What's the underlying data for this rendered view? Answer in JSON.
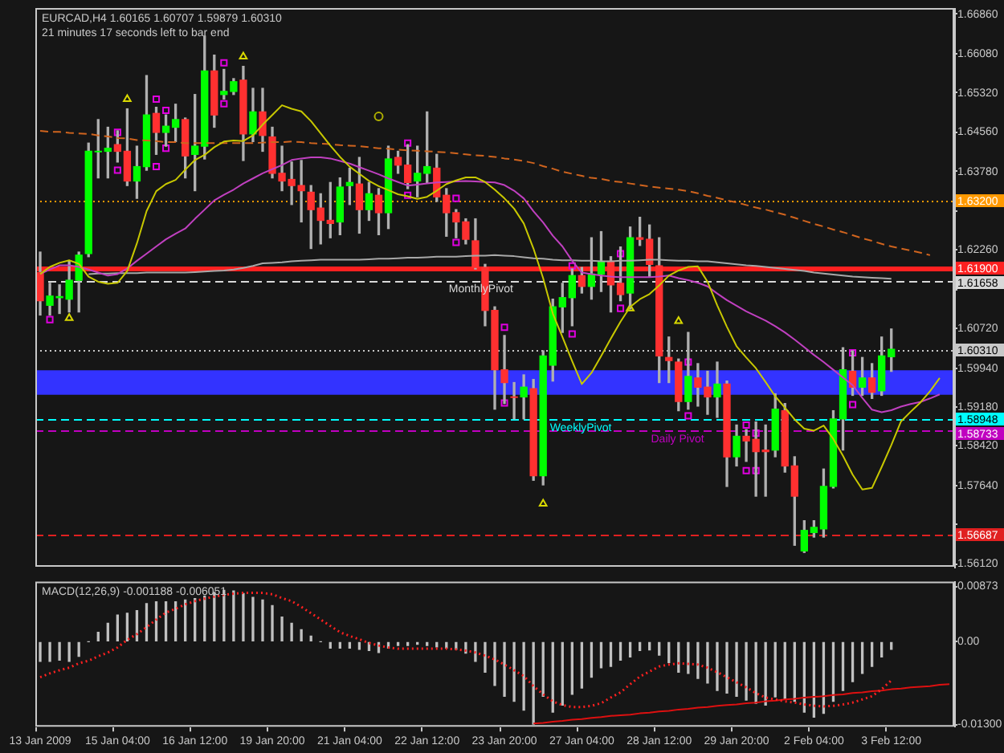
{
  "chart_data": [
    {
      "type": "candlestick",
      "title": "EURCAD,H4 1.60165 1.60707 1.59879 1.60310",
      "subtitle": "21 minutes 17 seconds left to bar end",
      "categories": [
        null,
        null,
        null,
        null,
        null,
        null,
        null,
        null,
        null,
        null,
        null,
        null,
        null,
        null,
        null,
        null,
        null,
        null,
        null,
        null,
        null,
        null,
        null,
        null,
        null,
        null,
        null,
        null,
        null,
        null,
        null,
        null,
        null,
        null,
        null,
        null,
        null,
        null,
        null,
        null,
        null,
        null,
        null,
        null,
        null,
        null,
        null,
        null,
        null,
        null,
        null,
        null,
        null,
        null,
        null,
        null,
        null,
        null,
        null,
        null,
        null,
        null,
        null,
        null,
        null,
        null,
        null,
        null,
        null,
        null,
        null,
        null,
        null,
        null,
        null,
        null,
        null,
        null,
        null,
        null,
        null,
        null,
        null,
        null,
        null,
        null,
        null,
        null,
        null,
        null,
        null,
        null,
        null,
        null,
        null
      ],
      "ohlc": [
        [
          1.6181,
          1.6221,
          1.6098,
          1.6126
        ],
        [
          1.6117,
          1.616,
          1.6098,
          1.6135
        ],
        [
          1.6132,
          1.6157,
          1.6101,
          1.6134
        ],
        [
          1.6129,
          1.6203,
          1.6104,
          1.6166
        ],
        [
          1.6166,
          1.6221,
          1.6104,
          1.6215
        ],
        [
          1.6218,
          1.6434,
          1.6212,
          1.6418
        ],
        [
          1.6417,
          1.648,
          1.6366,
          1.6418
        ],
        [
          1.6418,
          1.6465,
          1.6366,
          1.6424
        ],
        [
          1.6431,
          1.6458,
          1.6397,
          1.6418
        ],
        [
          1.6418,
          1.6501,
          1.6351,
          1.636
        ],
        [
          1.636,
          1.6428,
          1.6326,
          1.6388
        ],
        [
          1.6388,
          1.6566,
          1.6381,
          1.6489
        ],
        [
          1.6492,
          1.6504,
          1.6412,
          1.6455
        ],
        [
          1.6455,
          1.6489,
          1.6428,
          1.6467
        ],
        [
          1.6465,
          1.651,
          1.6437,
          1.648
        ],
        [
          1.648,
          1.6483,
          1.6366,
          1.6409
        ],
        [
          1.6412,
          1.6529,
          1.6341,
          1.6428
        ],
        [
          1.6428,
          1.6643,
          1.6403,
          1.6575
        ],
        [
          1.6575,
          1.6606,
          1.6465,
          1.6489
        ],
        [
          1.6529,
          1.6578,
          1.652,
          1.6535
        ],
        [
          1.6535,
          1.656,
          1.6529,
          1.6554
        ],
        [
          1.6557,
          1.6584,
          1.64,
          1.6452
        ],
        [
          1.6452,
          1.6541,
          1.6437,
          1.6495
        ],
        [
          1.6495,
          1.6541,
          1.6418,
          1.6449
        ],
        [
          1.6446,
          1.6465,
          1.6366,
          1.6375
        ],
        [
          1.6375,
          1.6428,
          1.6341,
          1.636
        ],
        [
          1.6363,
          1.6397,
          1.6314,
          1.6351
        ],
        [
          1.6351,
          1.64,
          1.628,
          1.6341
        ],
        [
          1.6338,
          1.6351,
          1.6228,
          1.6304
        ],
        [
          1.6307,
          1.6335,
          1.6237,
          1.6283
        ],
        [
          1.6283,
          1.6357,
          1.6249,
          1.6277
        ],
        [
          1.628,
          1.6366,
          1.6255,
          1.6348
        ],
        [
          1.6351,
          1.6385,
          1.6314,
          1.6357
        ],
        [
          1.6354,
          1.6406,
          1.6258,
          1.6304
        ],
        [
          1.6304,
          1.6357,
          1.6283,
          1.6335
        ],
        [
          1.6332,
          1.6345,
          1.6255,
          1.6298
        ],
        [
          1.6298,
          1.6428,
          1.6267,
          1.6403
        ],
        [
          1.6406,
          1.6418,
          1.6375,
          1.6391
        ],
        [
          1.6391,
          1.6431,
          1.6345,
          1.6357
        ],
        [
          1.636,
          1.6428,
          1.6329,
          1.6375
        ],
        [
          1.6375,
          1.6495,
          1.6357,
          1.6388
        ],
        [
          1.6385,
          1.6412,
          1.632,
          1.6329
        ],
        [
          1.6332,
          1.6345,
          1.6252,
          1.6298
        ],
        [
          1.6298,
          1.6304,
          1.6249,
          1.628
        ],
        [
          1.628,
          1.6286,
          1.6237,
          1.6246
        ],
        [
          1.6243,
          1.6286,
          1.6188,
          1.6191
        ],
        [
          1.6191,
          1.6197,
          1.6077,
          1.6107
        ],
        [
          1.6107,
          1.6114,
          1.5914,
          1.5991
        ],
        [
          1.5991,
          1.6058,
          1.5925,
          1.5966
        ],
        [
          1.5938,
          1.5966,
          1.5895,
          1.5937
        ],
        [
          1.5938,
          1.5981,
          1.5895,
          1.5957
        ],
        [
          1.5954,
          1.5972,
          1.5775,
          1.5784
        ],
        [
          1.5784,
          1.6028,
          1.5766,
          1.6018
        ],
        [
          1.6,
          1.6129,
          1.5969,
          1.6114
        ],
        [
          1.6114,
          1.616,
          1.6064,
          1.6132
        ],
        [
          1.6132,
          1.6188,
          1.6077,
          1.6175
        ],
        [
          1.6175,
          1.6191,
          1.6141,
          1.6154
        ],
        [
          1.6154,
          1.6249,
          1.6129,
          1.6178
        ],
        [
          1.6178,
          1.6261,
          1.6144,
          1.6203
        ],
        [
          1.6203,
          1.6212,
          1.6104,
          1.6157
        ],
        [
          1.616,
          1.6231,
          1.6126,
          1.6138
        ],
        [
          1.6141,
          1.627,
          1.611,
          1.6249
        ],
        [
          1.6249,
          1.6289,
          1.6234,
          1.6246
        ],
        [
          1.6246,
          1.6274,
          1.6172,
          1.6197
        ],
        [
          1.6194,
          1.6249,
          1.5966,
          1.6018
        ],
        [
          1.6015,
          1.6055,
          1.5966,
          1.6009
        ],
        [
          1.6006,
          1.6012,
          1.5911,
          1.5929
        ],
        [
          1.5929,
          1.6064,
          1.5914,
          1.5978
        ],
        [
          1.5975,
          1.6003,
          1.592,
          1.5957
        ],
        [
          1.5957,
          1.5988,
          1.5904,
          1.5938
        ],
        [
          1.5938,
          1.6006,
          1.5898,
          1.5963
        ],
        [
          1.5963,
          1.5969,
          1.5763,
          1.5821
        ],
        [
          1.5821,
          1.5883,
          1.5803,
          1.5861
        ],
        [
          1.5861,
          1.5874,
          1.5812,
          1.5852
        ],
        [
          1.5855,
          1.5889,
          1.5744,
          1.5831
        ],
        [
          1.5834,
          1.5883,
          1.5744,
          1.5831
        ],
        [
          1.5834,
          1.5944,
          1.5821,
          1.5914
        ],
        [
          1.5911,
          1.5925,
          1.5791,
          1.5803
        ],
        [
          1.5803,
          1.5821,
          1.5648,
          1.5744
        ],
        [
          1.5637,
          1.5696,
          1.5634,
          1.5677
        ],
        [
          1.5673,
          1.5696,
          1.5664,
          1.5683
        ],
        [
          1.568,
          1.5797,
          1.5664,
          1.5763
        ],
        [
          1.5763,
          1.5911,
          1.576,
          1.5895
        ],
        [
          1.5895,
          1.6034,
          1.5834,
          1.5991
        ],
        [
          1.5988,
          1.6028,
          1.5941,
          1.5957
        ],
        [
          1.5957,
          1.6015,
          1.5941,
          1.5975
        ],
        [
          1.5975,
          1.6003,
          1.5935,
          1.5947
        ],
        [
          1.595,
          1.6055,
          1.5941,
          1.6018
        ],
        [
          1.60165,
          1.60707,
          1.59879,
          1.6031
        ],
        null,
        null,
        null,
        null,
        null,
        null
      ],
      "colors": [
        "#ff3030",
        "#00ff00",
        "#00ff00",
        "#00ff00",
        "#00ff00",
        "#00ff00",
        "#00ff00",
        "#00ff00",
        "#ff3030",
        "#ff3030",
        "#00ff00",
        "#00ff00",
        "#ff3030",
        "#00ff00",
        "#00ff00",
        "#ff3030",
        "#00ff00",
        "#00ff00",
        "#ff3030",
        "#00ff00",
        "#00ff00",
        "#ff3030",
        "#00ff00",
        "#ff3030",
        "#ff3030",
        "#ff3030",
        "#ff3030",
        "#ff3030",
        "#ff3030",
        "#ff3030",
        "#ff3030",
        "#00ff00",
        "#00ff00",
        "#ff3030",
        "#00ff00",
        "#ff3030",
        "#00ff00",
        "#ff3030",
        "#ff3030",
        "#00ff00",
        "#00ff00",
        "#ff3030",
        "#ff3030",
        "#ff3030",
        "#ff3030",
        "#ff3030",
        "#ff3030",
        "#ff3030",
        "#ff3030",
        "#ff3030",
        "#00ff00",
        "#ff3030",
        "#00ff00",
        "#00ff00",
        "#00ff00",
        "#00ff00",
        "#ff3030",
        "#00ff00",
        "#00ff00",
        "#ff3030",
        "#ff3030",
        "#00ff00",
        "#ff3030",
        "#ff3030",
        "#ff3030",
        "#ff3030",
        "#ff3030",
        "#00ff00",
        "#ff3030",
        "#ff3030",
        "#00ff00",
        "#ff3030",
        "#00ff00",
        "#ff3030",
        "#ff3030",
        "#ff3030",
        "#00ff00",
        "#ff3030",
        "#ff3030",
        "#00ff00",
        "#00ff00",
        "#00ff00",
        "#00ff00",
        "#00ff00",
        "#ff3030",
        "#00ff00",
        "#ff3030",
        "#00ff00",
        "#00ff00",
        null,
        null,
        null,
        null,
        null,
        null
      ],
      "series": [
        {
          "type": "line",
          "color": "#c8c800",
          "values": [
            1.6178,
            1.6192,
            1.62,
            1.6205,
            1.6198,
            1.6173,
            1.6163,
            1.6159,
            1.6161,
            1.6184,
            1.6238,
            1.6301,
            1.634,
            1.6354,
            1.6362,
            1.6382,
            1.6401,
            1.6411,
            1.6426,
            1.6437,
            1.6439,
            1.6438,
            1.6449,
            1.647,
            1.6489,
            1.6508,
            1.6501,
            1.6496,
            1.6477,
            1.6453,
            1.6429,
            1.6407,
            1.6388,
            1.6374,
            1.636,
            1.635,
            1.6342,
            1.6334,
            1.633,
            1.6325,
            1.6329,
            1.6341,
            1.6354,
            1.6361,
            1.6367,
            1.6367,
            1.6358,
            1.6343,
            1.6326,
            1.6306,
            1.6277,
            1.6228,
            1.617,
            1.6101,
            1.6055,
            1.6008,
            1.5963,
            1.5985,
            1.6018,
            1.6052,
            1.6085,
            1.6114,
            1.6129,
            1.6139,
            1.6156,
            1.6175,
            1.6185,
            1.6192,
            1.6193,
            1.6163,
            1.6117,
            1.6075,
            1.6037,
            1.6015,
            1.5994,
            1.5967,
            1.5939,
            1.5917,
            1.5894,
            1.5876,
            1.5872,
            1.5882,
            1.5856,
            1.5823,
            1.5786,
            1.5757,
            1.576,
            1.5801,
            1.5844,
            1.589,
            1.5909,
            1.5927,
            1.5949,
            1.5975,
            null
          ]
        },
        {
          "type": "line",
          "color": "#c040c0",
          "values": [
            1.6178,
            1.6187,
            1.6195,
            1.6195,
            1.6192,
            1.6187,
            1.6181,
            1.6175,
            1.6178,
            1.6189,
            1.6204,
            1.6218,
            1.6232,
            1.6246,
            1.6257,
            1.6267,
            1.6286,
            1.6304,
            1.6322,
            1.6333,
            1.6343,
            1.6355,
            1.6365,
            1.6375,
            1.6383,
            1.6391,
            1.6401,
            1.6404,
            1.6406,
            1.6406,
            1.6404,
            1.6399,
            1.6394,
            1.6387,
            1.638,
            1.6373,
            1.6365,
            1.6358,
            1.6351,
            1.6353,
            1.6355,
            1.6357,
            1.6358,
            1.6359,
            1.636,
            1.6359,
            1.6358,
            1.6357,
            1.6352,
            1.6341,
            1.6326,
            1.6301,
            1.6279,
            1.6253,
            1.6232,
            1.6204,
            1.6181,
            1.6178,
            1.6175,
            1.6173,
            1.6172,
            1.6172,
            1.6172,
            1.6172,
            1.6173,
            1.6175,
            1.617,
            1.6166,
            1.6161,
            1.6154,
            1.614,
            1.6127,
            1.6116,
            1.6105,
            1.6096,
            1.6087,
            1.6076,
            1.6064,
            1.605,
            1.6035,
            1.602,
            1.6006,
            1.5991,
            1.5976,
            1.5961,
            1.5936,
            1.5913,
            1.5908,
            1.5912,
            1.5919,
            1.5924,
            1.5928,
            1.5935,
            1.5943,
            null
          ]
        },
        {
          "type": "line",
          "color": "#d0641e",
          "line_style": "dashed",
          "values": [
            1.6458,
            1.6456,
            1.6456,
            1.6454,
            1.6453,
            1.6452,
            1.6449,
            1.6447,
            1.6444,
            1.6443,
            1.644,
            1.6439,
            1.6438,
            1.6436,
            1.6436,
            1.6434,
            1.6434,
            1.6434,
            1.6434,
            1.6434,
            1.6434,
            1.6434,
            1.6434,
            1.6435,
            1.6436,
            1.6436,
            1.6437,
            1.6436,
            1.6434,
            1.6433,
            1.6432,
            1.643,
            1.6429,
            1.6428,
            1.6426,
            1.6424,
            1.6423,
            1.6421,
            1.642,
            1.6419,
            1.6418,
            1.6417,
            1.6416,
            1.6414,
            1.6412,
            1.641,
            1.6409,
            1.6407,
            1.6404,
            1.6402,
            1.6399,
            1.6395,
            1.6389,
            1.6384,
            1.6378,
            1.6374,
            1.637,
            1.6366,
            1.6364,
            1.636,
            1.6358,
            1.6355,
            1.6352,
            1.6349,
            1.6347,
            1.6345,
            1.6343,
            1.634,
            1.6336,
            1.6331,
            1.6327,
            1.6322,
            1.6318,
            1.6313,
            1.6308,
            1.6304,
            1.6299,
            1.6294,
            1.6288,
            1.6282,
            1.6276,
            1.6271,
            1.6265,
            1.626,
            1.6254,
            1.6248,
            1.6243,
            1.6237,
            1.6232,
            1.6228,
            1.6224,
            1.622,
            1.6215,
            null,
            null
          ]
        },
        {
          "type": "line",
          "color": "#a8a8a8",
          "values": [
            null,
            null,
            null,
            null,
            null,
            1.6178,
            1.6179,
            1.6179,
            1.618,
            1.618,
            1.618,
            1.6181,
            1.6181,
            1.6181,
            1.6181,
            1.6181,
            1.6182,
            1.6183,
            1.6184,
            1.6185,
            1.6187,
            1.619,
            1.6194,
            1.6199,
            1.62,
            1.6201,
            1.6203,
            1.6204,
            1.6205,
            1.6206,
            1.6206,
            1.6206,
            1.6206,
            1.6206,
            1.6207,
            1.6208,
            1.6208,
            1.6209,
            1.621,
            1.621,
            1.6211,
            1.6212,
            1.6212,
            1.6212,
            1.6213,
            1.6214,
            1.6214,
            1.6215,
            1.6214,
            1.6213,
            1.6211,
            1.6209,
            1.6208,
            1.6206,
            1.6205,
            1.6205,
            1.6204,
            1.6204,
            1.6203,
            1.6203,
            1.6204,
            1.6204,
            1.6205,
            1.6206,
            1.6206,
            1.6205,
            1.6204,
            1.6204,
            1.6203,
            1.6203,
            1.6201,
            1.6199,
            1.6197,
            1.6195,
            1.6194,
            1.6192,
            1.619,
            1.6188,
            1.6186,
            1.6184,
            1.6181,
            1.6179,
            1.6177,
            1.6175,
            1.6173,
            1.6172,
            1.6171,
            1.617,
            1.6169,
            null,
            null,
            null,
            null,
            null,
            null
          ]
        },
        {
          "type": "scatter",
          "color": "#e000e0",
          "marker": "square",
          "values": [
            null,
            null,
            null,
            null,
            null,
            null,
            null,
            null,
            1.6455,
            null,
            null,
            null,
            1.652,
            1.6498,
            null,
            null,
            null,
            null,
            null,
            1.6591,
            null,
            null,
            null,
            null,
            null,
            null,
            null,
            null,
            null,
            null,
            null,
            null,
            null,
            null,
            null,
            null,
            null,
            null,
            1.6434,
            null,
            null,
            null,
            null,
            1.6326,
            null,
            null,
            null,
            null,
            1.6074,
            null,
            null,
            null,
            null,
            null,
            null,
            1.6194,
            null,
            null,
            null,
            null,
            1.6218,
            null,
            null,
            null,
            null,
            null,
            null,
            1.6006,
            null,
            null,
            null,
            null,
            null,
            1.5883,
            1.5867,
            null,
            null,
            null,
            null,
            null,
            null,
            null,
            null,
            null,
            1.6024,
            null,
            null,
            null,
            null,
            null,
            null,
            null,
            null,
            null,
            null
          ]
        },
        {
          "type": "scatter",
          "color": "#e000e0",
          "marker": "square",
          "values": [
            null,
            1.6089,
            null,
            null,
            null,
            null,
            null,
            null,
            1.6381,
            null,
            null,
            null,
            1.6388,
            1.6424,
            null,
            null,
            null,
            null,
            null,
            1.6511,
            null,
            null,
            null,
            null,
            null,
            null,
            null,
            null,
            null,
            null,
            null,
            null,
            null,
            null,
            null,
            null,
            null,
            null,
            1.6332,
            null,
            null,
            null,
            null,
            1.624,
            null,
            null,
            null,
            null,
            1.5926,
            null,
            null,
            null,
            null,
            null,
            null,
            1.6061,
            null,
            null,
            null,
            null,
            1.6111,
            null,
            null,
            null,
            null,
            null,
            null,
            1.5901,
            null,
            null,
            null,
            null,
            null,
            1.5794,
            1.5794,
            null,
            null,
            null,
            null,
            null,
            null,
            null,
            null,
            null,
            1.5923,
            null,
            null,
            null,
            null,
            null,
            null,
            null,
            null,
            null,
            null
          ]
        },
        {
          "type": "scatter",
          "color": "#d8d800",
          "marker": "triangle",
          "values": [
            null,
            null,
            null,
            null,
            null,
            null,
            null,
            null,
            null,
            1.652,
            null,
            null,
            null,
            null,
            null,
            null,
            null,
            null,
            null,
            null,
            null,
            1.6603,
            null,
            null,
            null,
            null,
            null,
            null,
            null,
            null,
            null,
            null,
            null,
            null,
            null,
            null,
            null,
            null,
            null,
            null,
            null,
            null,
            null,
            null,
            null,
            null,
            null,
            null,
            null,
            null,
            null,
            null,
            null,
            null,
            null,
            null,
            null,
            null,
            null,
            null,
            null,
            null,
            null,
            null,
            null,
            null,
            1.6086,
            null,
            null,
            null,
            null,
            null,
            null,
            null,
            null,
            null,
            null,
            null,
            null,
            null,
            null,
            null,
            null,
            null,
            null,
            null,
            null,
            null,
            null,
            null,
            null,
            null,
            null,
            null,
            null
          ]
        },
        {
          "type": "scatter",
          "color": "#d8d800",
          "marker": "triangle",
          "values": [
            null,
            null,
            null,
            1.6092,
            null,
            null,
            null,
            null,
            null,
            null,
            null,
            null,
            null,
            null,
            null,
            null,
            null,
            null,
            null,
            null,
            null,
            null,
            null,
            null,
            null,
            null,
            null,
            null,
            null,
            null,
            null,
            null,
            null,
            null,
            null,
            null,
            null,
            null,
            null,
            null,
            null,
            null,
            null,
            null,
            null,
            null,
            null,
            null,
            null,
            null,
            null,
            null,
            1.5729,
            null,
            null,
            null,
            null,
            null,
            null,
            null,
            null,
            1.6111,
            null,
            null,
            null,
            null,
            null,
            null,
            null,
            null,
            null,
            null,
            null,
            null,
            null,
            null,
            null,
            null,
            null,
            null,
            null,
            null,
            null,
            null,
            null,
            null,
            null,
            null,
            null,
            null,
            null,
            null,
            null,
            null,
            null
          ]
        },
        {
          "type": "scatter",
          "color": "#b0b000",
          "marker": "circle",
          "values": [
            null,
            null,
            null,
            null,
            null,
            null,
            null,
            null,
            null,
            null,
            null,
            null,
            null,
            null,
            null,
            null,
            null,
            null,
            null,
            null,
            null,
            null,
            null,
            null,
            null,
            null,
            null,
            null,
            null,
            null,
            null,
            null,
            null,
            null,
            null,
            1.6486,
            null,
            null,
            null,
            null,
            null,
            null,
            null,
            null,
            null,
            null,
            null,
            null,
            null,
            null,
            null,
            null,
            null,
            null,
            null,
            null,
            null,
            null,
            null,
            null,
            null,
            null,
            null,
            null,
            null,
            null,
            null,
            null,
            null,
            null,
            null,
            null,
            null,
            null,
            null,
            null,
            null,
            null,
            null,
            null,
            null,
            null,
            null,
            null,
            null,
            null,
            null,
            null,
            null,
            null,
            null,
            null,
            null,
            null,
            null
          ]
        }
      ],
      "ylim": [
        1.5606,
        1.6698
      ],
      "yticks": [
        {
          "value": 1.6686,
          "label": "1.66860"
        },
        {
          "value": 1.6608,
          "label": "1.66080"
        },
        {
          "value": 1.6532,
          "label": "1.65320"
        },
        {
          "value": 1.6456,
          "label": "1.64560"
        },
        {
          "value": 1.6378,
          "label": "1.63780"
        },
        {
          "value": 1.6302,
          "label": null
        },
        {
          "value": 1.6226,
          "label": "1.62260"
        },
        {
          "value": 1.6148,
          "label": null
        },
        {
          "value": 1.6072,
          "label": "1.60720"
        },
        {
          "value": 1.5994,
          "label": "1.59940"
        },
        {
          "value": 1.5918,
          "label": "1.59180"
        },
        {
          "value": 1.5842,
          "label": "1.58420"
        },
        {
          "value": 1.5764,
          "label": "1.57640"
        },
        {
          "value": 1.5688,
          "label": null
        },
        {
          "value": 1.5612,
          "label": "1.56120"
        },
        {
          "value": 1.632,
          "label": "1.63200"
        },
        {
          "value": 1.619,
          "label": "1.61900"
        },
        1.61658,
        {
          "value": 1.6031,
          "label": "1.60310"
        },
        1.58948,
        1.58733,
        1.56687
      ],
      "ref_lines": [
        {
          "axis": "y",
          "value": 1.632,
          "color": "#ff9900",
          "line_style": "dotted"
        },
        {
          "axis": "y",
          "value": 1.619,
          "color": "#ff2020",
          "line_style": "solid"
        },
        {
          "axis": "y",
          "value": 1.61658,
          "label": "MonthlyPivot",
          "color": "#d8d8d8",
          "line_style": "dashed"
        },
        {
          "axis": "y",
          "value": 1.6031,
          "color": "#c8c8c8",
          "line_style": "dotted"
        },
        {
          "axis": "y",
          "value": 1.58948,
          "label": "WeeklyPivot",
          "color": "#00ffff",
          "line_style": "dashed"
        },
        {
          "axis": "y",
          "value": 1.58733,
          "label": "Daily Pivot",
          "color": "#c000c0",
          "line_style": "dashed"
        },
        {
          "axis": "y",
          "value": 1.56687,
          "color": "#e02020",
          "line_style": "dashed"
        }
      ],
      "bands": [
        {
          "axis": "y",
          "from": 1.5942,
          "to": 1.599,
          "color": "#3333ff"
        }
      ],
      "tick_labels": "y"
    },
    {
      "type": "bar",
      "title": "MACD(12,26,9) -0.001188 -0.006051",
      "categories": [
        "13 Jan 2009",
        null,
        null,
        null,
        null,
        null,
        null,
        null,
        "15 Jan 04:00",
        null,
        null,
        null,
        null,
        null,
        null,
        null,
        "16 Jan 12:00",
        null,
        null,
        null,
        null,
        null,
        null,
        null,
        "19 Jan 20:00",
        null,
        null,
        null,
        null,
        null,
        null,
        null,
        "21 Jan 04:00",
        null,
        null,
        null,
        null,
        null,
        null,
        null,
        "22 Jan 12:00",
        null,
        null,
        null,
        null,
        null,
        null,
        null,
        "23 Jan 20:00",
        null,
        null,
        null,
        null,
        null,
        null,
        null,
        "27 Jan 04:00",
        null,
        null,
        null,
        null,
        null,
        null,
        null,
        "28 Jan 12:00",
        null,
        null,
        null,
        null,
        null,
        null,
        null,
        "29 Jan 20:00",
        null,
        null,
        null,
        null,
        null,
        null,
        null,
        "2 Feb 04:00",
        null,
        null,
        null,
        null,
        null,
        null,
        null,
        "3 Feb 12:00",
        null,
        null,
        null,
        null,
        null,
        null
      ],
      "series": [
        {
          "type": "bar",
          "color": "#c0c0c0",
          "values": [
            -0.0031,
            -0.0031,
            -0.0029,
            -0.0031,
            -0.0023,
            0,
            0.0015,
            0.0029,
            0.0042,
            0.0045,
            0.0049,
            0.006,
            0.0063,
            0.0063,
            0.0063,
            0.0066,
            0.0068,
            0.0072,
            0.0078,
            0.0081,
            0.008,
            0.0076,
            0.007,
            0.0066,
            0.0057,
            0.0039,
            0.0029,
            0.0019,
            0.0009,
            0,
            -0.001,
            -0.001,
            -0.001,
            -0.0012,
            -0.0014,
            -0.0017,
            -0.001,
            -0.0006,
            -0.0006,
            -0.0004,
            -0.0006,
            -0.0008,
            -0.001,
            -0.0012,
            -0.0018,
            -0.0031,
            -0.0048,
            -0.0069,
            -0.0086,
            -0.0094,
            -0.0108,
            -0.013,
            -0.0086,
            -0.0111,
            -0.01,
            -0.0083,
            -0.0073,
            -0.0056,
            -0.0041,
            -0.0039,
            -0.0029,
            -0.0024,
            -0.0014,
            -0.0013,
            -0.0021,
            -0.0033,
            -0.0048,
            -0.005,
            -0.0058,
            -0.0065,
            -0.0077,
            -0.0081,
            -0.0086,
            -0.0092,
            -0.0097,
            -0.01,
            -0.0087,
            -0.009,
            -0.0094,
            -0.0111,
            -0.0119,
            -0.0113,
            -0.0094,
            -0.0077,
            -0.0063,
            -0.005,
            -0.0039,
            -0.0024,
            -0.0012,
            null,
            null,
            null,
            null,
            null,
            null
          ]
        },
        {
          "type": "line",
          "color": "#ff2020",
          "line_style": "dotted",
          "values": [
            -0.0056,
            -0.005,
            -0.0045,
            -0.0041,
            -0.0034,
            -0.003,
            -0.0023,
            -0.0017,
            -0.0009,
            0.0003,
            0.0012,
            0.0023,
            0.0035,
            0.0046,
            0.0052,
            0.0059,
            0.0064,
            0.0068,
            0.0071,
            0.0074,
            0.0076,
            0.0077,
            0.0077,
            0.0077,
            0.0075,
            0.0069,
            0.0064,
            0.0055,
            0.0045,
            0.0035,
            0.0025,
            0.0015,
            0.0009,
            0.0004,
            -0.0002,
            -0.0006,
            -0.0009,
            -0.0011,
            -0.0011,
            -0.0011,
            -0.0011,
            -0.0011,
            -0.0011,
            -0.0012,
            -0.0014,
            -0.0017,
            -0.0022,
            -0.0028,
            -0.0036,
            -0.0045,
            -0.0054,
            -0.007,
            -0.0083,
            -0.0094,
            -0.01,
            -0.0103,
            -0.0103,
            -0.0101,
            -0.0097,
            -0.0088,
            -0.008,
            -0.0067,
            -0.0055,
            -0.0047,
            -0.0039,
            -0.0036,
            -0.0034,
            -0.0035,
            -0.0036,
            -0.0041,
            -0.0048,
            -0.0056,
            -0.0064,
            -0.0072,
            -0.0081,
            -0.0088,
            -0.0091,
            -0.0094,
            -0.0096,
            -0.0099,
            -0.0101,
            -0.0102,
            -0.0101,
            -0.0099,
            -0.0096,
            -0.0091,
            -0.0086,
            -0.0075,
            -0.0061,
            null,
            null,
            null,
            null,
            null,
            null
          ]
        },
        {
          "type": "line",
          "color": "#dd1010",
          "values": [
            null,
            null,
            null,
            null,
            null,
            null,
            null,
            null,
            null,
            null,
            null,
            null,
            null,
            null,
            null,
            null,
            null,
            null,
            null,
            null,
            null,
            null,
            null,
            null,
            null,
            null,
            null,
            null,
            null,
            null,
            null,
            null,
            null,
            null,
            null,
            null,
            null,
            null,
            null,
            null,
            null,
            null,
            null,
            null,
            null,
            null,
            null,
            null,
            null,
            null,
            null,
            -0.0129,
            -0.0128,
            -0.0126,
            -0.0125,
            -0.0123,
            -0.0122,
            -0.012,
            -0.0119,
            -0.0117,
            -0.0116,
            -0.0115,
            -0.0113,
            -0.0112,
            -0.011,
            -0.0109,
            -0.0107,
            -0.0106,
            -0.0104,
            -0.0103,
            -0.0101,
            -0.01,
            -0.0099,
            -0.0097,
            -0.0096,
            -0.0094,
            -0.0093,
            -0.0091,
            -0.009,
            -0.0088,
            -0.0087,
            -0.0086,
            -0.0084,
            -0.0083,
            -0.0081,
            -0.008,
            -0.0078,
            -0.0077,
            -0.0075,
            -0.0074,
            -0.0072,
            -0.0071,
            -0.007,
            -0.0068,
            -0.0067
          ]
        }
      ],
      "ylim": [
        -0.0134,
        0.0095
      ],
      "yticks": [
        0.00873,
        {
          "value": 0,
          "label": "0.00"
        },
        {
          "value": -0.013,
          "label": "-0.01300"
        }
      ]
    }
  ]
}
